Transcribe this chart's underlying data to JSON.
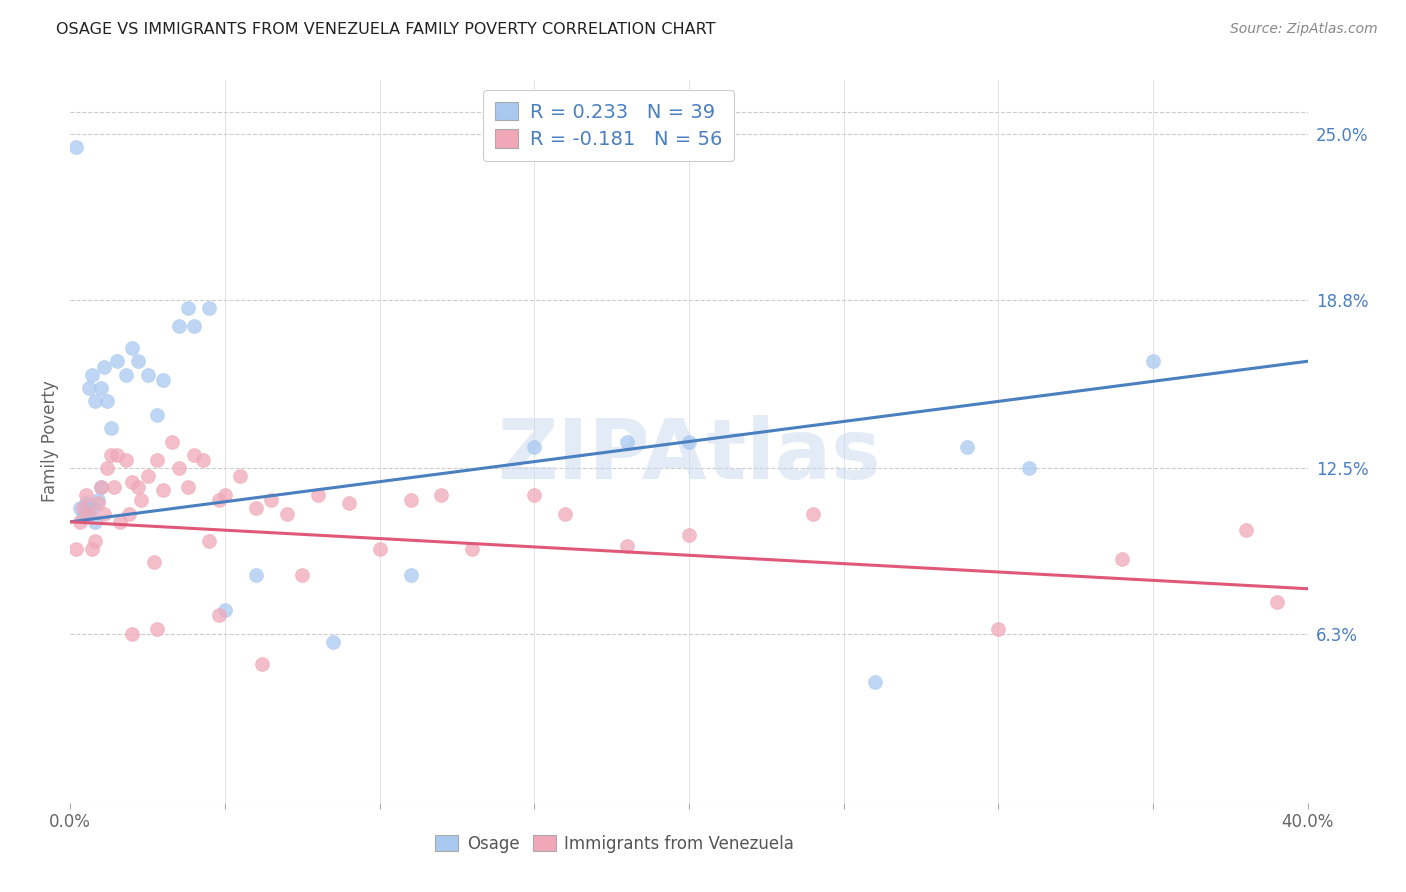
{
  "title": "OSAGE VS IMMIGRANTS FROM VENEZUELA FAMILY POVERTY CORRELATION CHART",
  "source": "Source: ZipAtlas.com",
  "ylabel": "Family Poverty",
  "ytick_labels": [
    "6.3%",
    "12.5%",
    "18.8%",
    "25.0%"
  ],
  "ytick_values": [
    0.063,
    0.125,
    0.188,
    0.25
  ],
  "xmin": 0.0,
  "xmax": 0.4,
  "ymin": 0.0,
  "ymax": 0.27,
  "watermark": "ZIPAtlas",
  "blue_color": "#a8c8f0",
  "pink_color": "#f0a8b8",
  "blue_line_color": "#4a7fc0",
  "pink_line_color": "#e05878",
  "legend_text1": "R = 0.233   N = 39",
  "legend_text2": "R = -0.181   N = 56",
  "osage_x": [
    0.002,
    0.003,
    0.004,
    0.005,
    0.005,
    0.006,
    0.006,
    0.007,
    0.007,
    0.008,
    0.008,
    0.009,
    0.01,
    0.01,
    0.011,
    0.012,
    0.013,
    0.015,
    0.018,
    0.02,
    0.022,
    0.025,
    0.028,
    0.03,
    0.035,
    0.038,
    0.04,
    0.045,
    0.05,
    0.06,
    0.085,
    0.11,
    0.15,
    0.2,
    0.26,
    0.31,
    0.35,
    0.29,
    0.18
  ],
  "osage_y": [
    0.245,
    0.11,
    0.107,
    0.112,
    0.108,
    0.11,
    0.155,
    0.11,
    0.16,
    0.105,
    0.15,
    0.113,
    0.118,
    0.155,
    0.163,
    0.15,
    0.14,
    0.165,
    0.16,
    0.17,
    0.165,
    0.16,
    0.145,
    0.158,
    0.178,
    0.185,
    0.178,
    0.185,
    0.072,
    0.085,
    0.06,
    0.085,
    0.133,
    0.135,
    0.045,
    0.125,
    0.165,
    0.133,
    0.135
  ],
  "venezuela_x": [
    0.002,
    0.003,
    0.004,
    0.005,
    0.006,
    0.007,
    0.008,
    0.009,
    0.01,
    0.011,
    0.012,
    0.013,
    0.014,
    0.015,
    0.016,
    0.018,
    0.019,
    0.02,
    0.022,
    0.023,
    0.025,
    0.027,
    0.028,
    0.03,
    0.033,
    0.035,
    0.038,
    0.04,
    0.043,
    0.048,
    0.05,
    0.055,
    0.06,
    0.065,
    0.07,
    0.075,
    0.08,
    0.09,
    0.1,
    0.11,
    0.12,
    0.13,
    0.15,
    0.16,
    0.18,
    0.2,
    0.24,
    0.3,
    0.34,
    0.38,
    0.39,
    0.045,
    0.02,
    0.028,
    0.048,
    0.062
  ],
  "venezuela_y": [
    0.095,
    0.105,
    0.11,
    0.115,
    0.108,
    0.095,
    0.098,
    0.112,
    0.118,
    0.108,
    0.125,
    0.13,
    0.118,
    0.13,
    0.105,
    0.128,
    0.108,
    0.12,
    0.118,
    0.113,
    0.122,
    0.09,
    0.128,
    0.117,
    0.135,
    0.125,
    0.118,
    0.13,
    0.128,
    0.113,
    0.115,
    0.122,
    0.11,
    0.113,
    0.108,
    0.085,
    0.115,
    0.112,
    0.095,
    0.113,
    0.115,
    0.095,
    0.115,
    0.108,
    0.096,
    0.1,
    0.108,
    0.065,
    0.091,
    0.102,
    0.075,
    0.098,
    0.063,
    0.065,
    0.07,
    0.052
  ]
}
